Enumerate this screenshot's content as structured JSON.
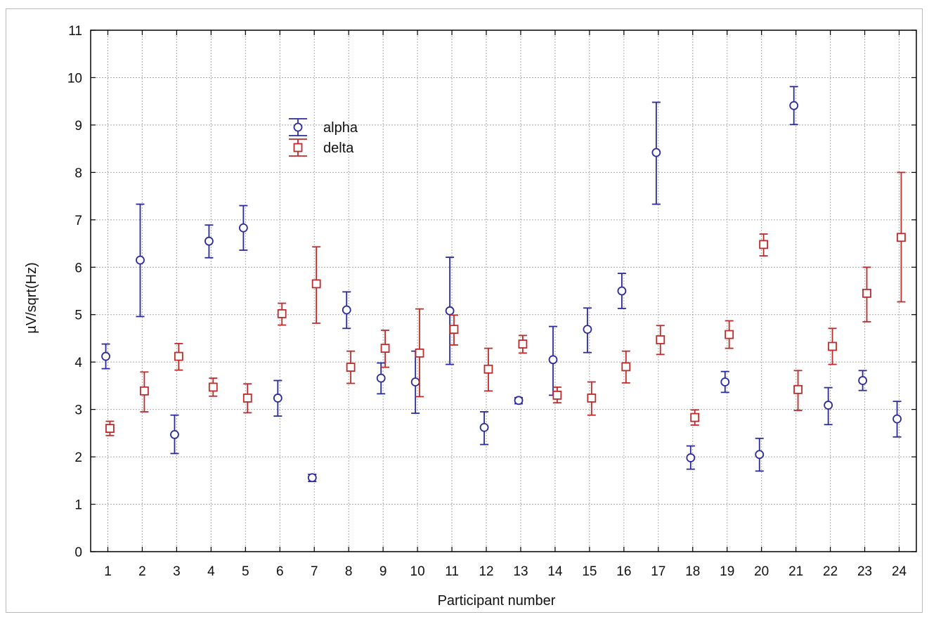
{
  "chart_data": {
    "type": "scatter",
    "title": "",
    "xlabel": "Participant number",
    "ylabel": "µV/sqrt(Hz)",
    "x": [
      1,
      2,
      3,
      4,
      5,
      6,
      7,
      8,
      9,
      10,
      11,
      12,
      13,
      14,
      15,
      16,
      17,
      18,
      19,
      20,
      21,
      22,
      23,
      24
    ],
    "xlim": [
      0.5,
      24.5
    ],
    "ylim": [
      0,
      11
    ],
    "yticks": [
      0,
      1,
      2,
      3,
      4,
      5,
      6,
      7,
      8,
      9,
      10,
      11
    ],
    "grid": true,
    "legend_position": "top-left",
    "series": [
      {
        "name": "alpha",
        "marker": "circle",
        "color": "#2b2b9e",
        "values": [
          4.12,
          6.15,
          2.47,
          6.55,
          6.83,
          3.24,
          1.56,
          5.1,
          3.66,
          3.58,
          5.08,
          2.62,
          3.19,
          4.05,
          4.69,
          5.5,
          8.42,
          1.98,
          3.58,
          2.05,
          9.41,
          3.09,
          3.61,
          2.8
        ],
        "lower": [
          3.86,
          4.96,
          2.07,
          6.2,
          6.36,
          2.86,
          1.48,
          4.71,
          3.33,
          2.92,
          3.95,
          2.26,
          3.12,
          3.3,
          4.2,
          5.13,
          7.33,
          1.74,
          3.36,
          1.7,
          9.01,
          2.68,
          3.4,
          2.42
        ],
        "upper": [
          4.38,
          7.33,
          2.88,
          6.89,
          7.3,
          3.61,
          1.63,
          5.48,
          3.98,
          4.23,
          6.21,
          2.95,
          3.25,
          4.75,
          5.14,
          5.87,
          9.48,
          2.23,
          3.8,
          2.39,
          9.81,
          3.46,
          3.82,
          3.17
        ]
      },
      {
        "name": "delta",
        "marker": "square",
        "color": "#c02a2a",
        "values": [
          2.6,
          3.39,
          4.12,
          3.47,
          3.24,
          5.02,
          5.65,
          3.89,
          4.29,
          4.19,
          4.69,
          3.85,
          4.38,
          3.3,
          3.24,
          3.9,
          4.47,
          2.83,
          4.58,
          6.48,
          3.42,
          4.33,
          5.45,
          6.63
        ],
        "lower": [
          2.45,
          2.95,
          3.83,
          3.28,
          2.93,
          4.78,
          4.82,
          3.55,
          3.89,
          3.27,
          4.36,
          3.39,
          4.19,
          3.14,
          2.88,
          3.56,
          4.16,
          2.67,
          4.29,
          6.24,
          2.98,
          3.95,
          4.85,
          5.27
        ],
        "upper": [
          2.75,
          3.79,
          4.39,
          3.66,
          3.54,
          5.24,
          6.43,
          4.23,
          4.67,
          5.12,
          4.99,
          4.29,
          4.56,
          3.47,
          3.58,
          4.23,
          4.77,
          2.99,
          4.87,
          6.7,
          3.82,
          4.71,
          6.0,
          8.0
        ]
      }
    ]
  }
}
